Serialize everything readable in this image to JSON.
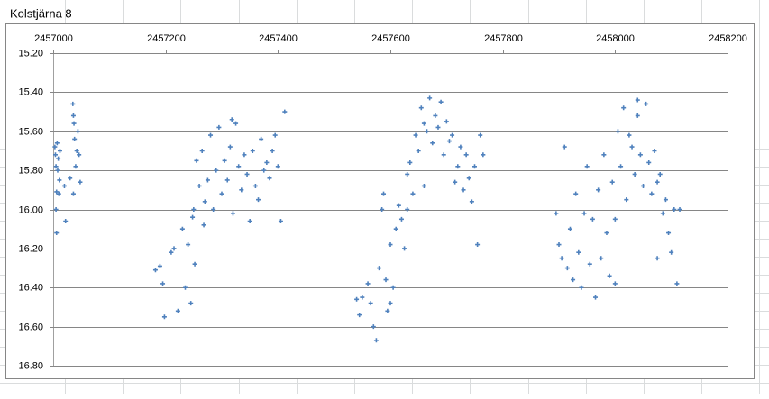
{
  "chart_data": {
    "type": "scatter",
    "title": "Kolstjärna 8",
    "color": "#4f81bd",
    "grid": true,
    "y_reversed": true,
    "xlim": [
      2457000,
      2458200
    ],
    "xticks": [
      2457000,
      2457200,
      2457400,
      2457600,
      2457800,
      2458000,
      2458200
    ],
    "ylim": [
      15.2,
      16.8
    ],
    "yticks": [
      {
        "value": 15.2,
        "label": "15.20"
      },
      {
        "value": 15.4,
        "label": "15.40"
      },
      {
        "value": 15.6,
        "label": "15.60"
      },
      {
        "value": 15.8,
        "label": "15.80"
      },
      {
        "value": 16.0,
        "label": "16.00"
      },
      {
        "value": 16.2,
        "label": "16.20"
      },
      {
        "value": 16.4,
        "label": "16.40"
      },
      {
        "value": 16.6,
        "label": "16.60"
      },
      {
        "value": 16.8,
        "label": "16.80"
      }
    ],
    "x": [
      2457003,
      2457004,
      2457005,
      2457006,
      2457007,
      2457008,
      2457009,
      2457010,
      2457011,
      2457012,
      2457005,
      2457006,
      2457022,
      2457020,
      2457035,
      2457036,
      2457037,
      2457038,
      2457040,
      2457042,
      2457044,
      2457046,
      2457048,
      2457036,
      2457030,
      2457182,
      2457190,
      2457195,
      2457198,
      2457210,
      2457215,
      2457222,
      2457230,
      2457235,
      2457240,
      2457245,
      2457248,
      2457252,
      2457255,
      2457260,
      2457265,
      2457270,
      2457275,
      2457280,
      2457285,
      2457290,
      2457295,
      2457300,
      2457305,
      2457310,
      2457315,
      2457320,
      2457325,
      2457330,
      2457335,
      2457340,
      2457345,
      2457350,
      2457355,
      2457360,
      2457365,
      2457370,
      2457375,
      2457380,
      2457385,
      2457390,
      2457395,
      2457400,
      2457405,
      2457412,
      2457318,
      2457268,
      2457250,
      2457540,
      2457545,
      2457550,
      2457560,
      2457565,
      2457570,
      2457575,
      2457580,
      2457585,
      2457588,
      2457592,
      2457595,
      2457600,
      2457605,
      2457610,
      2457615,
      2457620,
      2457625,
      2457630,
      2457635,
      2457640,
      2457645,
      2457650,
      2457655,
      2457660,
      2457665,
      2457670,
      2457675,
      2457680,
      2457685,
      2457690,
      2457695,
      2457700,
      2457705,
      2457710,
      2457715,
      2457720,
      2457725,
      2457730,
      2457735,
      2457740,
      2457745,
      2457750,
      2457755,
      2457760,
      2457765,
      2457630,
      2457660,
      2457600,
      2457895,
      2457900,
      2457905,
      2457910,
      2457915,
      2457920,
      2457925,
      2457930,
      2457935,
      2457940,
      2457945,
      2457950,
      2457955,
      2457960,
      2457965,
      2457970,
      2457975,
      2457980,
      2457985,
      2457990,
      2457995,
      2458000,
      2458005,
      2458010,
      2458015,
      2458020,
      2458025,
      2458030,
      2458035,
      2458040,
      2458045,
      2458050,
      2458055,
      2458060,
      2458065,
      2458070,
      2458075,
      2458080,
      2458085,
      2458090,
      2458095,
      2458100,
      2458105,
      2458110,
      2458115,
      2458075,
      2458040,
      2458000
    ],
    "values": [
      15.68,
      15.72,
      15.78,
      15.91,
      15.66,
      15.8,
      15.74,
      15.92,
      15.85,
      15.7,
      16.0,
      16.12,
      16.06,
      15.88,
      15.46,
      15.52,
      15.56,
      15.64,
      15.78,
      15.7,
      15.6,
      15.72,
      15.86,
      15.92,
      15.84,
      16.31,
      16.29,
      16.38,
      16.55,
      16.22,
      16.2,
      16.52,
      16.1,
      16.4,
      16.18,
      16.48,
      16.04,
      16.28,
      15.75,
      15.88,
      15.7,
      15.96,
      15.85,
      15.62,
      16.0,
      15.8,
      15.58,
      15.92,
      15.75,
      15.85,
      15.68,
      16.02,
      15.56,
      15.78,
      15.9,
      15.72,
      15.82,
      16.06,
      15.7,
      15.88,
      15.95,
      15.64,
      15.8,
      15.76,
      15.84,
      15.7,
      15.62,
      15.78,
      16.06,
      15.5,
      15.54,
      16.08,
      16.0,
      16.46,
      16.54,
      16.45,
      16.38,
      16.48,
      16.6,
      16.67,
      16.3,
      16.0,
      15.92,
      16.36,
      16.52,
      16.18,
      16.4,
      16.1,
      15.98,
      16.05,
      16.2,
      15.82,
      15.76,
      15.92,
      15.62,
      15.7,
      15.48,
      15.56,
      15.6,
      15.43,
      15.66,
      15.52,
      15.58,
      15.45,
      15.72,
      15.55,
      15.65,
      15.62,
      15.86,
      15.78,
      15.68,
      15.9,
      15.72,
      15.84,
      15.96,
      15.78,
      16.18,
      15.62,
      15.72,
      16.0,
      15.88,
      16.48,
      16.02,
      16.18,
      16.25,
      15.68,
      16.3,
      16.1,
      16.36,
      15.92,
      16.22,
      16.4,
      16.02,
      15.78,
      16.28,
      16.05,
      16.45,
      15.9,
      16.25,
      15.72,
      16.12,
      16.34,
      15.86,
      16.05,
      15.6,
      15.78,
      15.48,
      15.95,
      15.62,
      15.68,
      15.82,
      15.52,
      15.72,
      15.88,
      15.46,
      15.76,
      15.92,
      15.7,
      15.86,
      15.82,
      16.02,
      15.95,
      16.12,
      16.22,
      16.0,
      16.38,
      16.0,
      16.25,
      15.44,
      16.38
    ]
  }
}
